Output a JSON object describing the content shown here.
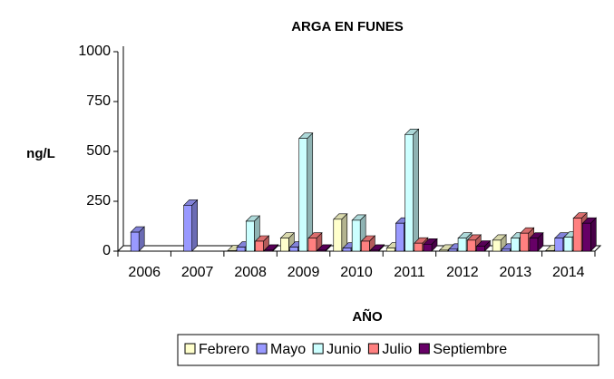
{
  "chart_data": {
    "type": "bar",
    "title": "ARGA EN FUNES",
    "x_label": "AÑO",
    "y_label": "ng/L",
    "categories": [
      "2006",
      "2007",
      "2008",
      "2009",
      "2010",
      "2011",
      "2012",
      "2013",
      "2014"
    ],
    "series": [
      {
        "name": "Febrero",
        "color": "#ffffcc",
        "values": [
          null,
          null,
          2,
          65,
          160,
          15,
          5,
          55,
          2
        ]
      },
      {
        "name": "Mayo",
        "color": "#9999ff",
        "values": [
          95,
          230,
          20,
          20,
          15,
          140,
          10,
          10,
          65
        ]
      },
      {
        "name": "Junio",
        "color": "#ccffff",
        "values": [
          null,
          null,
          150,
          565,
          155,
          585,
          65,
          65,
          70
        ]
      },
      {
        "name": "Julio",
        "color": "#ff8080",
        "values": [
          null,
          null,
          50,
          65,
          50,
          40,
          55,
          90,
          165
        ]
      },
      {
        "name": "Septiembre",
        "color": "#660066",
        "values": [
          null,
          null,
          5,
          5,
          5,
          35,
          25,
          65,
          140
        ]
      }
    ],
    "ylim": [
      0,
      1000
    ],
    "yticks": [
      0,
      250,
      500,
      750,
      1000
    ],
    "legend": "bottom"
  }
}
